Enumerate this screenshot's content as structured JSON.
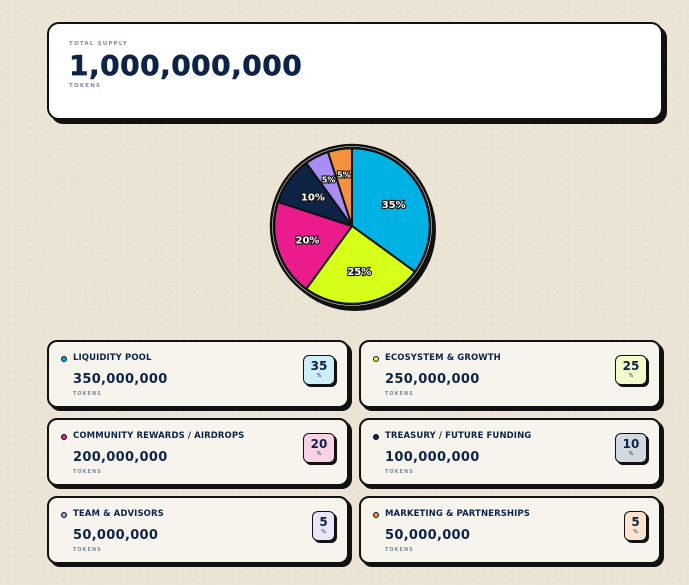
{
  "supply": {
    "label": "TOTAL SUPPLY",
    "value": "1,000,000,000",
    "unit": "TOKENS"
  },
  "chart_data": {
    "type": "pie",
    "title": "",
    "slices": [
      {
        "label": "35%",
        "name": "Liquidity Pool",
        "value": 35,
        "color": "#00b2e3"
      },
      {
        "label": "25%",
        "name": "Ecosystem & Growth",
        "value": 25,
        "color": "#d6ff1a"
      },
      {
        "label": "20%",
        "name": "Community Rewards / Airdrops",
        "value": 20,
        "color": "#ea1c8d"
      },
      {
        "label": "10%",
        "name": "Treasury / Future Funding",
        "value": 10,
        "color": "#0d2447"
      },
      {
        "label": "5%",
        "name": "Team & Advisors",
        "value": 5,
        "color": "#a98df5"
      },
      {
        "label": "5%",
        "name": "Marketing & Partnerships",
        "value": 5,
        "color": "#f4913b"
      }
    ]
  },
  "allocations": [
    {
      "name": "LIQUIDITY POOL",
      "amount": "350,000,000",
      "unit": "TOKENS",
      "percent": "35",
      "percent_sign": "%",
      "color": "#00b2e3",
      "badge_bg": "#cdeef8"
    },
    {
      "name": "ECOSYSTEM & GROWTH",
      "amount": "250,000,000",
      "unit": "TOKENS",
      "percent": "25",
      "percent_sign": "%",
      "color": "#d6ff1a",
      "badge_bg": "#f2fbc9"
    },
    {
      "name": "COMMUNITY REWARDS / AIRDROPS",
      "amount": "200,000,000",
      "unit": "TOKENS",
      "percent": "20",
      "percent_sign": "%",
      "color": "#ea1c8d",
      "badge_bg": "#fad2e6"
    },
    {
      "name": "TREASURY / FUTURE FUNDING",
      "amount": "100,000,000",
      "unit": "TOKENS",
      "percent": "10",
      "percent_sign": "%",
      "color": "#0d2447",
      "badge_bg": "#d3d9e1"
    },
    {
      "name": "TEAM & ADVISORS",
      "amount": "50,000,000",
      "unit": "TOKENS",
      "percent": "5",
      "percent_sign": "%",
      "color": "#a98df5",
      "badge_bg": "#ebe5fb"
    },
    {
      "name": "MARKETING & PARTNERSHIPS",
      "amount": "50,000,000",
      "unit": "TOKENS",
      "percent": "5",
      "percent_sign": "%",
      "color": "#f4913b",
      "badge_bg": "#fbe3cf"
    }
  ]
}
